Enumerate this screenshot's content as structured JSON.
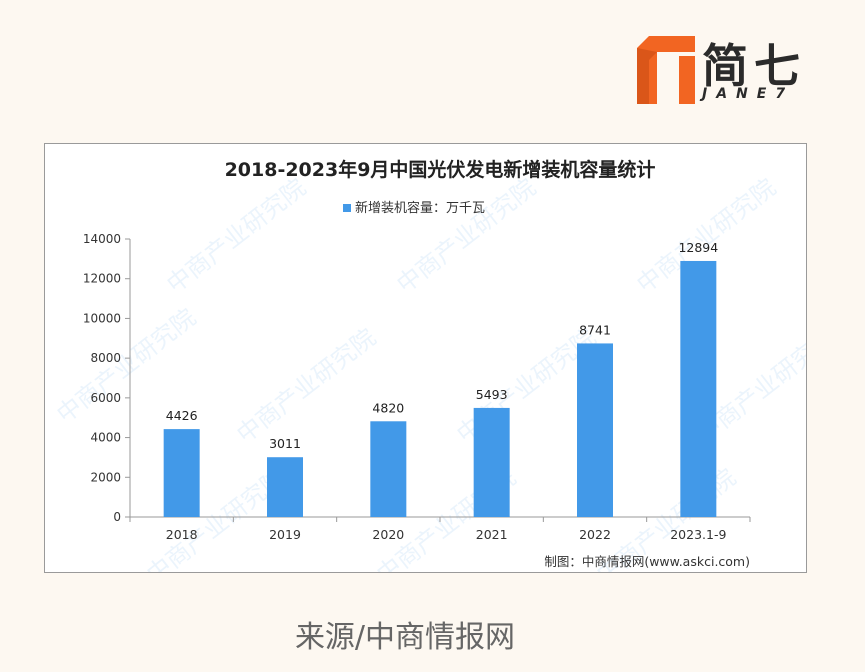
{
  "logo": {
    "text": "简七",
    "subtext": "JANE7",
    "colors": {
      "orange": "#f26522",
      "dark": "#2b2b2b"
    }
  },
  "chart_data": {
    "type": "bar",
    "title": "2018-2023年9月中国光伏发电新增装机容量统计",
    "legend": {
      "label": "新增装机容量：万千瓦",
      "position": "top"
    },
    "categories": [
      "2018",
      "2019",
      "2020",
      "2021",
      "2022",
      "2023.1-9"
    ],
    "series": [
      {
        "name": "新增装机容量：万千瓦",
        "values": [
          4426,
          3011,
          4820,
          5493,
          8741,
          12894
        ],
        "color": "#4299e8"
      }
    ],
    "ylim": [
      0,
      14000
    ],
    "yticks": [
      0,
      2000,
      4000,
      6000,
      8000,
      10000,
      12000,
      14000
    ],
    "grid": false,
    "xlabel": "",
    "ylabel": "",
    "credit": "制图：中商情报网(www.askci.com)",
    "watermark": "中商产业研究院"
  },
  "caption": "来源/中商情报网"
}
